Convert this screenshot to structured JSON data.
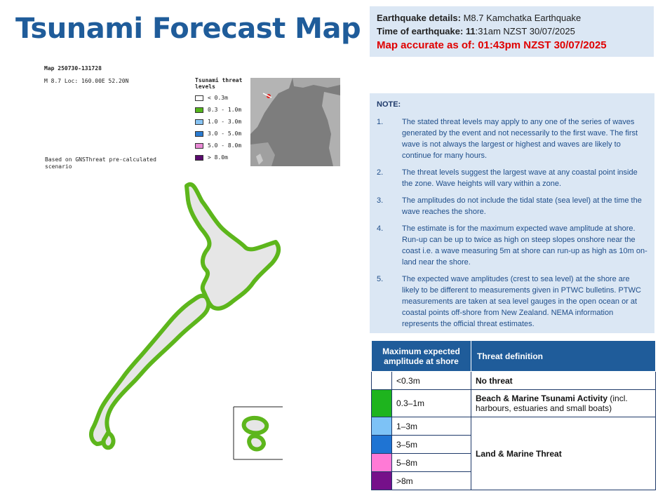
{
  "title": "Tsunami Forecast Map",
  "info": {
    "details_label": "Earthquake details:",
    "details_value": "M8.7 Kamchatka Earthquake",
    "time_label": "Time of earthquake:",
    "time_bold": "11",
    "time_value": ":31am NZST 30/07/2025",
    "accurate": "Map accurate as of: 01:43pm NZST 30/07/2025"
  },
  "map": {
    "map_id": "Map 250730-131728",
    "loc": "M 8.7 Loc: 160.00E 52.20N",
    "based_on": "Based on GNSThreat pre-calculated scenario",
    "legend_title": "Tsunami threat levels",
    "legend_items": [
      {
        "label": "< 0.3m",
        "color": "#ffffff"
      },
      {
        "label": "0.3 - 1.0m",
        "color": "#55b51c"
      },
      {
        "label": "1.0 - 3.0m",
        "color": "#88c4f4"
      },
      {
        "label": "3.0 - 5.0m",
        "color": "#2a7bd1"
      },
      {
        "label": "5.0 - 8.0m",
        "color": "#e889d4"
      },
      {
        "label": "> 8.0m",
        "color": "#5a0a6e"
      }
    ],
    "coast_color": "#5db61c",
    "land_color": "#e6e6e6"
  },
  "note": {
    "title": "NOTE:",
    "items": [
      {
        "num": "1.",
        "text": "The stated threat levels may apply to any one of the series of waves generated by the event and not necessarily to the first wave. The first wave is not always the largest or highest and waves are likely to continue for many hours."
      },
      {
        "num": "2.",
        "text": "The threat levels suggest the largest wave at any coastal point inside the zone. Wave heights will vary within a zone."
      },
      {
        "num": "3.",
        "text": "The amplitudes do not include the tidal state (sea level) at the time the wave reaches the shore."
      },
      {
        "num": "4.",
        "text": "The estimate is for the maximum expected wave amplitude at shore. Run-up can be up to twice as high on steep slopes onshore near the coast i.e. a wave measuring 5m at shore can run-up as high as 10m on-land near the shore."
      },
      {
        "num": "5.",
        "text": "The expected wave amplitudes (crest to sea level) at the shore are likely to be different to measurements given in PTWC bulletins. PTWC measurements are taken at sea level gauges in the open ocean or at coastal points off-shore from New Zealand. NEMA information represents the official threat estimates."
      }
    ]
  },
  "table": {
    "header_amp": "Maximum expected amplitude at shore",
    "header_def": "Threat definition",
    "rows": [
      {
        "amp": "<0.3m",
        "color": "#ffffff",
        "def": "No threat"
      },
      {
        "amp": "0.3–1m",
        "color": "#1eb41e",
        "def_bold": "Beach & Marine Tsunami Activity",
        "def_rest": " (incl. harbours, estuaries and small boats)"
      },
      {
        "amp": "1–3m",
        "color": "#7dc2f6"
      },
      {
        "amp": "3–5m",
        "color": "#1f74d3"
      },
      {
        "amp": "5–8m",
        "color": "#ff7ad6"
      },
      {
        "amp": ">8m",
        "color": "#76108a"
      }
    ],
    "land_marine": "Land & Marine Threat"
  }
}
